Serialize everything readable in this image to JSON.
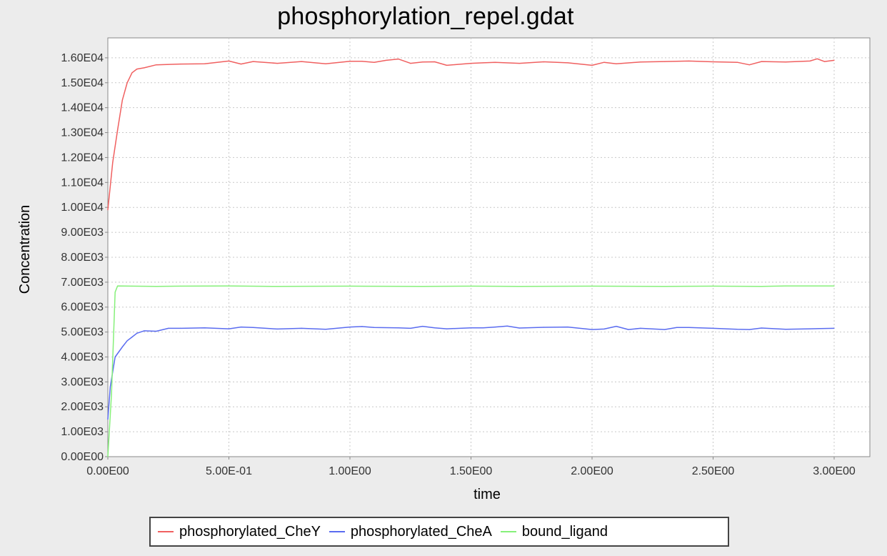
{
  "chart_data": {
    "type": "line",
    "title": "phosphorylation_repel.gdat",
    "xlabel": "time",
    "ylabel": "Concentration",
    "xlim": [
      0,
      3
    ],
    "ylim": [
      0,
      16800
    ],
    "grid": true,
    "legend_position": "bottom",
    "x_ticks": [
      0,
      0.5,
      1.0,
      1.5,
      2.0,
      2.5,
      3.0
    ],
    "x_tick_labels": [
      "0.00E00",
      "5.00E-01",
      "1.00E00",
      "1.50E00",
      "2.00E00",
      "2.50E00",
      "3.00E00"
    ],
    "y_ticks": [
      0,
      1000,
      2000,
      3000,
      4000,
      5000,
      6000,
      7000,
      8000,
      9000,
      10000,
      11000,
      12000,
      13000,
      14000,
      15000,
      16000
    ],
    "y_tick_labels": [
      "0.00E00",
      "1.00E03",
      "2.00E03",
      "3.00E03",
      "4.00E03",
      "5.00E03",
      "6.00E03",
      "7.00E03",
      "8.00E03",
      "9.00E03",
      "1.00E04",
      "1.10E04",
      "1.20E04",
      "1.30E04",
      "1.40E04",
      "1.50E04",
      "1.60E04"
    ],
    "series": [
      {
        "name": "phosphorylated_CheY",
        "color": "#f06060",
        "points": [
          [
            0,
            9900
          ],
          [
            0.02,
            11800
          ],
          [
            0.04,
            13100
          ],
          [
            0.06,
            14300
          ],
          [
            0.08,
            15000
          ],
          [
            0.1,
            15400
          ],
          [
            0.12,
            15550
          ],
          [
            0.15,
            15600
          ],
          [
            0.2,
            15720
          ],
          [
            0.3,
            15750
          ],
          [
            0.4,
            15760
          ],
          [
            0.5,
            15870
          ],
          [
            0.55,
            15750
          ],
          [
            0.6,
            15850
          ],
          [
            0.7,
            15780
          ],
          [
            0.8,
            15850
          ],
          [
            0.9,
            15760
          ],
          [
            1.0,
            15860
          ],
          [
            1.05,
            15860
          ],
          [
            1.1,
            15820
          ],
          [
            1.15,
            15900
          ],
          [
            1.2,
            15950
          ],
          [
            1.25,
            15780
          ],
          [
            1.3,
            15830
          ],
          [
            1.35,
            15840
          ],
          [
            1.4,
            15700
          ],
          [
            1.5,
            15780
          ],
          [
            1.55,
            15800
          ],
          [
            1.6,
            15820
          ],
          [
            1.7,
            15780
          ],
          [
            1.8,
            15840
          ],
          [
            1.9,
            15800
          ],
          [
            2.0,
            15700
          ],
          [
            2.05,
            15820
          ],
          [
            2.1,
            15760
          ],
          [
            2.2,
            15830
          ],
          [
            2.3,
            15850
          ],
          [
            2.4,
            15870
          ],
          [
            2.5,
            15840
          ],
          [
            2.6,
            15820
          ],
          [
            2.65,
            15720
          ],
          [
            2.7,
            15850
          ],
          [
            2.8,
            15830
          ],
          [
            2.9,
            15870
          ],
          [
            2.93,
            15960
          ],
          [
            2.96,
            15850
          ],
          [
            3.0,
            15900
          ]
        ]
      },
      {
        "name": "phosphorylated_CheA",
        "color": "#5a6cf0",
        "points": [
          [
            0,
            1500
          ],
          [
            0.01,
            2800
          ],
          [
            0.03,
            4000
          ],
          [
            0.06,
            4400
          ],
          [
            0.08,
            4650
          ],
          [
            0.1,
            4800
          ],
          [
            0.12,
            4950
          ],
          [
            0.15,
            5050
          ],
          [
            0.2,
            5030
          ],
          [
            0.25,
            5150
          ],
          [
            0.3,
            5150
          ],
          [
            0.4,
            5170
          ],
          [
            0.5,
            5130
          ],
          [
            0.55,
            5200
          ],
          [
            0.6,
            5180
          ],
          [
            0.7,
            5120
          ],
          [
            0.8,
            5150
          ],
          [
            0.9,
            5110
          ],
          [
            1.0,
            5200
          ],
          [
            1.05,
            5220
          ],
          [
            1.1,
            5180
          ],
          [
            1.2,
            5170
          ],
          [
            1.25,
            5150
          ],
          [
            1.3,
            5230
          ],
          [
            1.35,
            5170
          ],
          [
            1.4,
            5130
          ],
          [
            1.5,
            5170
          ],
          [
            1.55,
            5170
          ],
          [
            1.6,
            5200
          ],
          [
            1.65,
            5240
          ],
          [
            1.7,
            5160
          ],
          [
            1.8,
            5190
          ],
          [
            1.9,
            5200
          ],
          [
            2.0,
            5100
          ],
          [
            2.05,
            5120
          ],
          [
            2.1,
            5230
          ],
          [
            2.15,
            5100
          ],
          [
            2.2,
            5150
          ],
          [
            2.3,
            5100
          ],
          [
            2.35,
            5180
          ],
          [
            2.4,
            5180
          ],
          [
            2.5,
            5150
          ],
          [
            2.6,
            5110
          ],
          [
            2.65,
            5100
          ],
          [
            2.7,
            5160
          ],
          [
            2.8,
            5110
          ],
          [
            2.9,
            5130
          ],
          [
            3.0,
            5150
          ]
        ]
      },
      {
        "name": "bound_ligand",
        "color": "#86f07a",
        "points": [
          [
            0,
            0
          ],
          [
            0.015,
            2500
          ],
          [
            0.03,
            6600
          ],
          [
            0.04,
            6850
          ],
          [
            0.1,
            6840
          ],
          [
            0.2,
            6830
          ],
          [
            0.3,
            6840
          ],
          [
            0.5,
            6850
          ],
          [
            0.7,
            6830
          ],
          [
            1.0,
            6840
          ],
          [
            1.3,
            6830
          ],
          [
            1.5,
            6840
          ],
          [
            1.7,
            6830
          ],
          [
            2.0,
            6840
          ],
          [
            2.3,
            6830
          ],
          [
            2.5,
            6840
          ],
          [
            2.7,
            6830
          ],
          [
            2.8,
            6850
          ],
          [
            3.0,
            6850
          ]
        ]
      }
    ]
  }
}
